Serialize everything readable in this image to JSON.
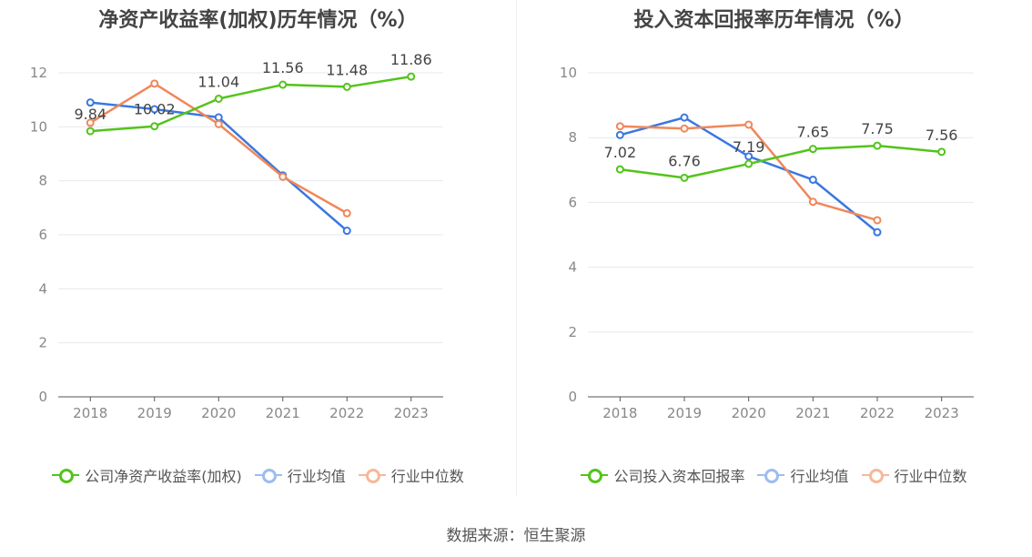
{
  "chart_data": [
    {
      "type": "line",
      "title": "净资产收益率(加权)历年情况（%）",
      "categories": [
        "2018",
        "2019",
        "2020",
        "2021",
        "2022",
        "2023"
      ],
      "ylim": [
        0,
        12
      ],
      "yticks": [
        "0",
        "2",
        "4",
        "6",
        "8",
        "10",
        "12"
      ],
      "grid": true,
      "legend_position": "bottom",
      "series": [
        {
          "name": "公司净资产收益率(加权)",
          "color": "#52c41a",
          "values": [
            9.84,
            10.02,
            11.04,
            11.56,
            11.48,
            11.86
          ],
          "labels": [
            "9.84",
            "10.02",
            "11.04",
            "11.56",
            "11.48",
            "11.86"
          ]
        },
        {
          "name": "行业均值",
          "color": "#3a78e0",
          "values": [
            10.9,
            10.65,
            10.35,
            8.2,
            6.15,
            null
          ]
        },
        {
          "name": "行业中位数",
          "color": "#f0875a",
          "values": [
            10.15,
            11.6,
            10.1,
            8.15,
            6.8,
            null
          ]
        }
      ]
    },
    {
      "type": "line",
      "title": "投入资本回报率历年情况（%）",
      "categories": [
        "2018",
        "2019",
        "2020",
        "2021",
        "2022",
        "2023"
      ],
      "ylim": [
        0,
        10
      ],
      "yticks": [
        "0",
        "2",
        "4",
        "6",
        "8",
        "10"
      ],
      "grid": true,
      "legend_position": "bottom",
      "series": [
        {
          "name": "公司投入资本回报率",
          "color": "#52c41a",
          "values": [
            7.02,
            6.76,
            7.19,
            7.65,
            7.75,
            7.56
          ],
          "labels": [
            "7.02",
            "6.76",
            "7.19",
            "7.65",
            "7.75",
            "7.56"
          ]
        },
        {
          "name": "行业均值",
          "color": "#3a78e0",
          "values": [
            8.08,
            8.62,
            7.42,
            6.7,
            5.08,
            null
          ]
        },
        {
          "name": "行业中位数",
          "color": "#f0875a",
          "values": [
            8.35,
            8.28,
            8.4,
            6.02,
            5.45,
            null
          ]
        }
      ]
    }
  ],
  "source": "数据来源：恒生聚源"
}
